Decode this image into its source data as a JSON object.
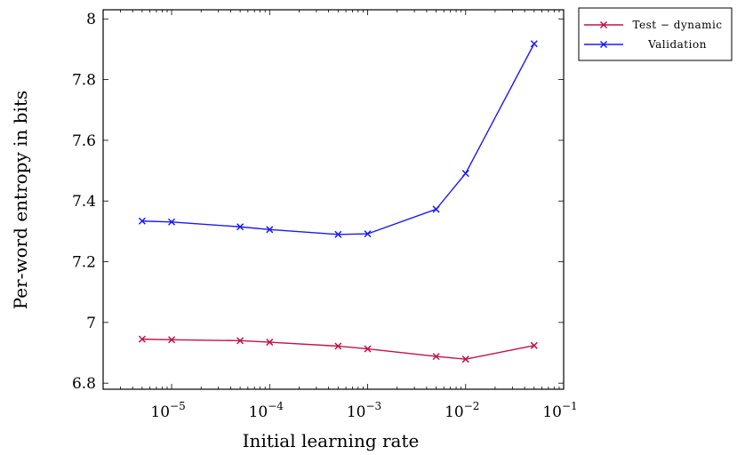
{
  "chart_data": {
    "type": "line",
    "xlabel": "Initial learning rate",
    "ylabel": "Per-word entropy in bits",
    "x_scale": "log",
    "xlim": [
      2e-06,
      0.1
    ],
    "ylim": [
      6.78,
      8.03
    ],
    "yticks": [
      6.8,
      7,
      7.2,
      7.4,
      7.6,
      7.8,
      8
    ],
    "ytick_labels": [
      "6.8",
      "7",
      "7.2",
      "7.4",
      "7.6",
      "7.8",
      "8"
    ],
    "xticks": [
      {
        "value": 1e-05,
        "base": "10",
        "exp": "−5"
      },
      {
        "value": 0.0001,
        "base": "10",
        "exp": "−4"
      },
      {
        "value": 0.001,
        "base": "10",
        "exp": "−3"
      },
      {
        "value": 0.01,
        "base": "10",
        "exp": "−2"
      },
      {
        "value": 0.1,
        "base": "10",
        "exp": "−1"
      }
    ],
    "legend_position": "outside-top-right",
    "series": [
      {
        "name": "Test − dynamic",
        "color": "#c0134a",
        "marker": "x",
        "x": [
          5e-06,
          1e-05,
          5e-05,
          0.0001,
          0.0005,
          0.001,
          0.005,
          0.01,
          0.05
        ],
        "y": [
          6.945,
          6.943,
          6.94,
          6.935,
          6.922,
          6.913,
          6.888,
          6.879,
          6.924
        ]
      },
      {
        "name": "Validation",
        "color": "#1a1aff",
        "marker": "x",
        "x": [
          5e-06,
          1e-05,
          5e-05,
          0.0001,
          0.0005,
          0.001,
          0.005,
          0.01,
          0.05
        ],
        "y": [
          7.334,
          7.331,
          7.315,
          7.306,
          7.29,
          7.292,
          7.373,
          7.491,
          7.918
        ]
      }
    ]
  }
}
